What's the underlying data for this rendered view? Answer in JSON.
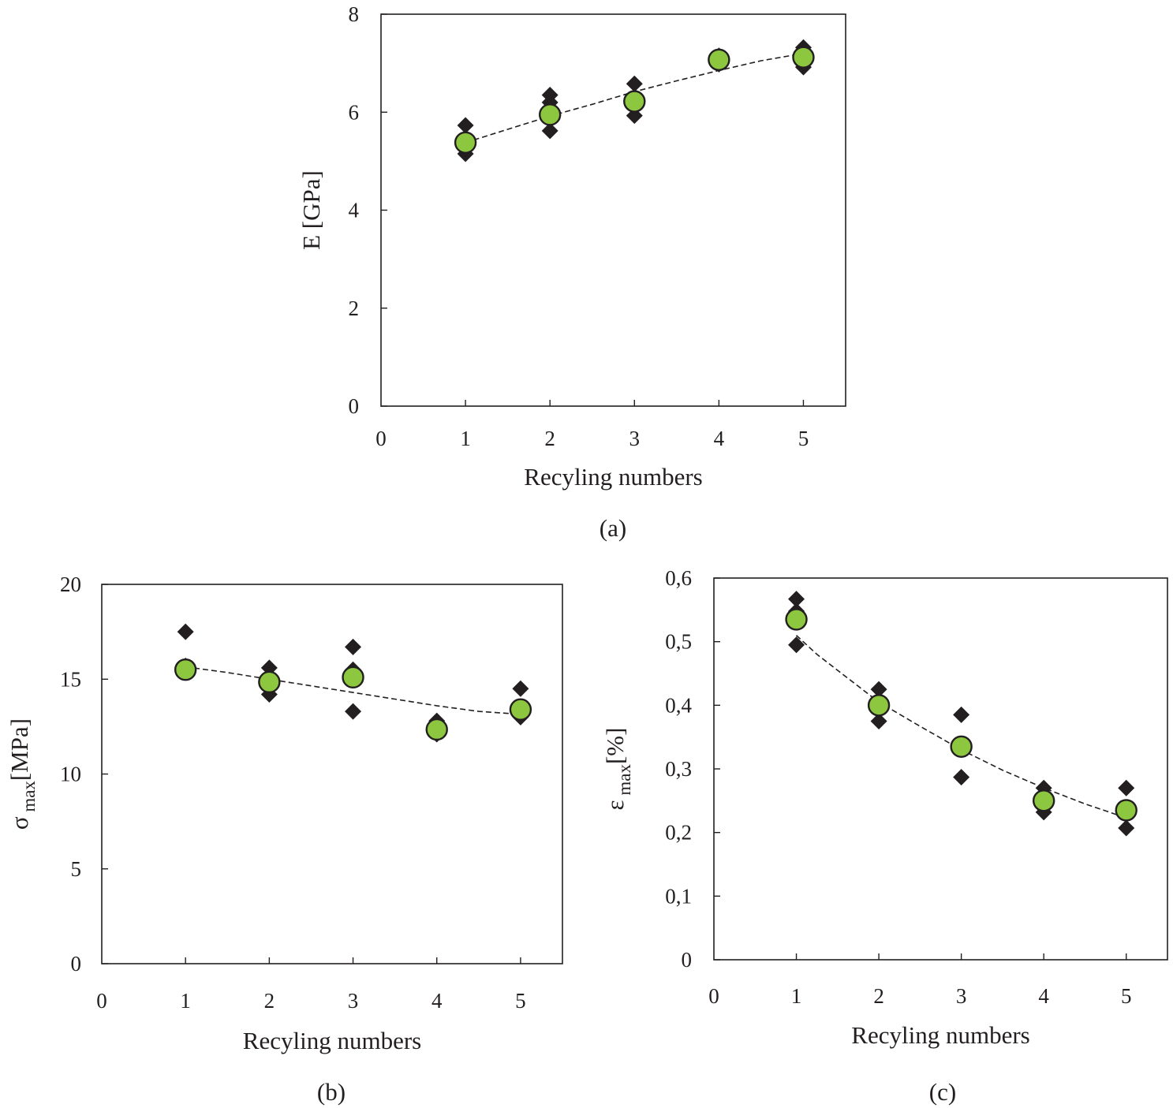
{
  "colors": {
    "mean_fill": "#8dc63f",
    "marker": "#231f20",
    "axis": "#231f20"
  },
  "chart_data": [
    {
      "id": "a",
      "type": "scatter",
      "panel_label": "(a)",
      "xlabel": "Recyling numbers",
      "ylabel": "E [GPa]",
      "ylabel_parts": {
        "main": "E [GPa]",
        "sub": "",
        "tail": ""
      },
      "xlim": [
        0,
        5.5
      ],
      "ylim": [
        0,
        8
      ],
      "xticks": [
        0,
        1,
        2,
        3,
        4,
        5
      ],
      "xtick_labels": [
        "0",
        "1",
        "2",
        "3",
        "4",
        "5"
      ],
      "yticks": [
        0,
        2,
        4,
        6,
        8
      ],
      "ytick_labels": [
        "0",
        "2",
        "4",
        "6",
        "8"
      ],
      "legend": "none",
      "series": [
        {
          "name": "samples",
          "marker": "diamond",
          "x": [
            1,
            1,
            1,
            2,
            2,
            2,
            3,
            3,
            3,
            4,
            4,
            5,
            5
          ],
          "y": [
            5.73,
            5.25,
            5.15,
            6.35,
            6.2,
            5.62,
            6.58,
            6.15,
            5.93,
            7.15,
            6.98,
            7.32,
            6.92
          ]
        },
        {
          "name": "mean",
          "marker": "circle",
          "x": [
            1,
            2,
            3,
            4,
            5
          ],
          "y": [
            5.38,
            5.95,
            6.22,
            7.07,
            7.12
          ]
        },
        {
          "name": "trend",
          "style": "dashed",
          "x": [
            1,
            1.5,
            2,
            2.5,
            3,
            3.5,
            4,
            4.5,
            5
          ],
          "y": [
            5.38,
            5.65,
            5.92,
            6.16,
            6.42,
            6.64,
            6.85,
            7.05,
            7.2
          ]
        }
      ]
    },
    {
      "id": "b",
      "type": "scatter",
      "panel_label": "(b)",
      "xlabel": "Recyling numbers",
      "ylabel": "σ max[MPa]",
      "ylabel_parts": {
        "main": "σ",
        "sub": "max",
        "tail": "[MPa]"
      },
      "xlim": [
        0,
        5.5
      ],
      "ylim": [
        0,
        20
      ],
      "xticks": [
        0,
        1,
        2,
        3,
        4,
        5
      ],
      "xtick_labels": [
        "0",
        "1",
        "2",
        "3",
        "4",
        "5"
      ],
      "yticks": [
        0,
        5,
        10,
        15,
        20
      ],
      "ytick_labels": [
        "0",
        "5",
        "10",
        "15",
        "20"
      ],
      "legend": "none",
      "series": [
        {
          "name": "samples",
          "marker": "diamond",
          "x": [
            1,
            1,
            2,
            2,
            3,
            3,
            3,
            4,
            4,
            5,
            5
          ],
          "y": [
            17.5,
            15.7,
            15.6,
            14.2,
            16.7,
            15.5,
            13.3,
            12.8,
            12.1,
            14.5,
            13.0
          ]
        },
        {
          "name": "mean",
          "marker": "circle",
          "x": [
            1,
            2,
            3,
            4,
            5
          ],
          "y": [
            15.5,
            14.85,
            15.1,
            12.35,
            13.4
          ]
        },
        {
          "name": "trend",
          "style": "dashed",
          "x": [
            1,
            1.5,
            2,
            2.5,
            3,
            3.5,
            4,
            4.5,
            5
          ],
          "y": [
            15.65,
            15.35,
            15.0,
            14.65,
            14.3,
            13.95,
            13.6,
            13.3,
            13.15
          ]
        }
      ]
    },
    {
      "id": "c",
      "type": "scatter",
      "panel_label": "(c)",
      "xlabel": "Recyling numbers",
      "ylabel": "ε max[%]",
      "ylabel_parts": {
        "main": "ε",
        "sub": "max",
        "tail": "[%]"
      },
      "xlim": [
        0,
        5.5
      ],
      "ylim": [
        0,
        0.6
      ],
      "xticks": [
        0,
        1,
        2,
        3,
        4,
        5
      ],
      "xtick_labels": [
        "0",
        "1",
        "2",
        "3",
        "4",
        "5"
      ],
      "yticks": [
        0,
        0.1,
        0.2,
        0.3,
        0.4,
        0.5,
        0.6
      ],
      "ytick_labels": [
        "0",
        "0,1",
        "0,2",
        "0,3",
        "0,4",
        "0,5",
        "0,6"
      ],
      "legend": "none",
      "series": [
        {
          "name": "samples",
          "marker": "diamond",
          "x": [
            1,
            1,
            1,
            2,
            2,
            3,
            3,
            4,
            4,
            5,
            5
          ],
          "y": [
            0.567,
            0.548,
            0.495,
            0.425,
            0.375,
            0.385,
            0.287,
            0.27,
            0.232,
            0.27,
            0.207
          ]
        },
        {
          "name": "mean",
          "marker": "circle",
          "x": [
            1,
            2,
            3,
            4,
            5
          ],
          "y": [
            0.535,
            0.4,
            0.335,
            0.25,
            0.235
          ]
        },
        {
          "name": "trend",
          "style": "dashed",
          "x": [
            1,
            1.25,
            1.5,
            2,
            2.5,
            3,
            3.5,
            4,
            4.5,
            5
          ],
          "y": [
            0.51,
            0.48,
            0.455,
            0.405,
            0.367,
            0.33,
            0.298,
            0.27,
            0.245,
            0.223
          ]
        }
      ]
    }
  ]
}
